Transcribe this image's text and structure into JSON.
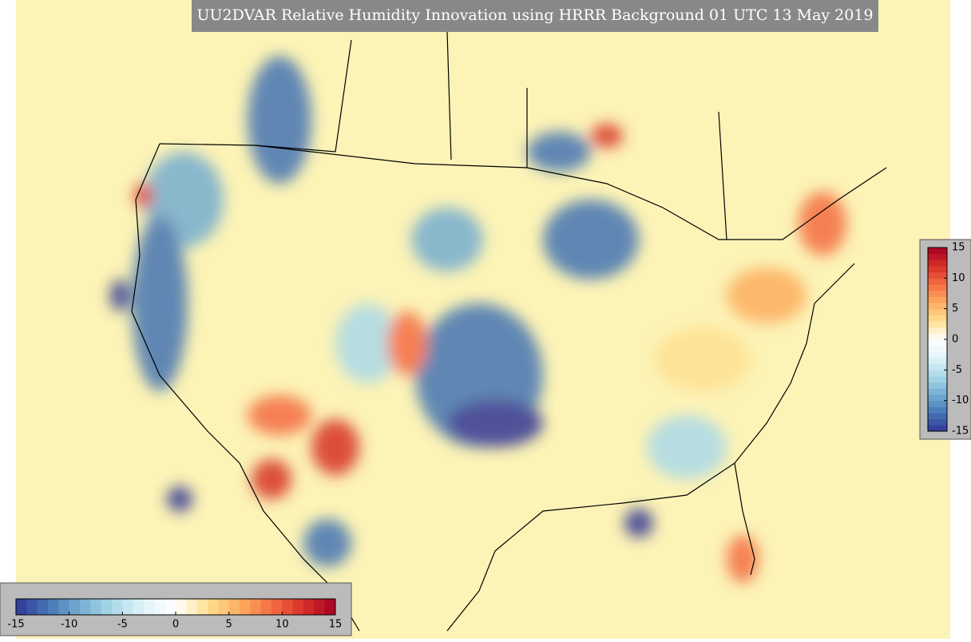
{
  "title": "UU2DVAR Relative Humidity Innovation using HRRR Background 01 UTC 13 May 2019",
  "colorbars": [
    {
      "orientation": "vertical",
      "ticks": [
        15,
        10,
        5,
        0,
        -5,
        -10,
        -15
      ]
    },
    {
      "orientation": "horizontal",
      "ticks": [
        -15,
        -10,
        -5,
        0,
        5,
        10,
        15
      ]
    }
  ]
}
